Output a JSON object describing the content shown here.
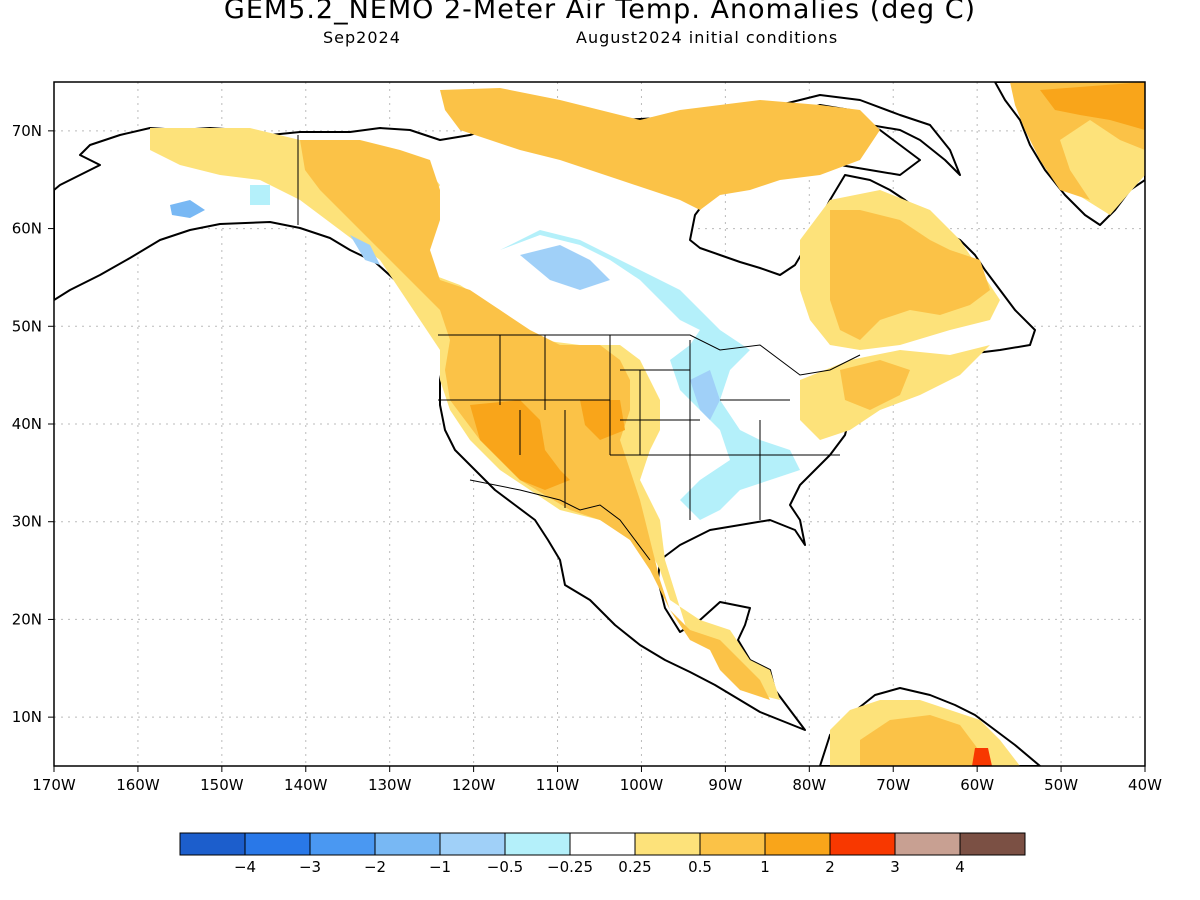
{
  "title": "GEM5.2_NEMO 2-Meter Air Temp. Anomalies (deg C)",
  "subtitle_left": "Sep2024",
  "subtitle_right": "August2024 initial conditions",
  "map": {
    "lon_range": [
      -170,
      -40
    ],
    "lat_range": [
      5,
      75
    ],
    "grid": true
  },
  "x_ticks": [
    "170W",
    "160W",
    "150W",
    "140W",
    "130W",
    "120W",
    "110W",
    "100W",
    "90W",
    "80W",
    "70W",
    "60W",
    "50W",
    "40W"
  ],
  "y_ticks": [
    "10N",
    "20N",
    "30N",
    "40N",
    "50N",
    "60N",
    "70N"
  ],
  "legend": {
    "colors": [
      "#1c5ecc",
      "#2978e8",
      "#4a98f2",
      "#78b8f4",
      "#a0d0f8",
      "#b4f0fa",
      "#ffffff",
      "#fde27a",
      "#fbc247",
      "#f9a51a",
      "#f83800",
      "#c8a092",
      "#7b5044"
    ],
    "labels": [
      "−4",
      "−3",
      "−2",
      "−1",
      "−0.5",
      "−0.25",
      "0.25",
      "0.5",
      "1",
      "2",
      "3",
      "4"
    ]
  },
  "colors": {
    "land_outline": "#000000",
    "grid_line": "#bbbbbb",
    "ocean": "#ffffff"
  }
}
